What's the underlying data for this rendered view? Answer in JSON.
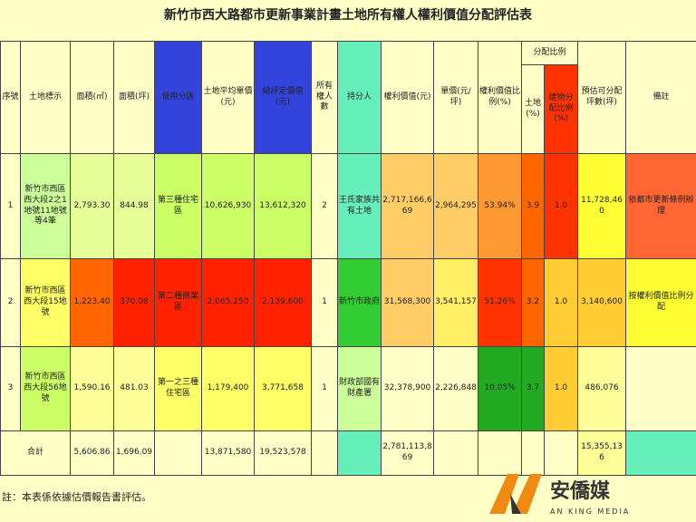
{
  "header": {
    "title": "新竹市西大路都市更新事業計畫土地所有權人權利價值分配評估表"
  },
  "table": {
    "columns": [
      "序號",
      "土地標示",
      "面積(㎡)",
      "面積(坪)",
      "使用分區",
      "土地平均單價(元)",
      "總評定價值(元)",
      "所有權人數",
      "持分人",
      "權利價值(元)",
      "單價(元/坪)",
      "權利價值比例(%)",
      "預估可分配坪數(坪)",
      "備註"
    ],
    "group": {
      "label": "分配比例",
      "sub": [
        "土地(%)",
        "建物分配比例(%)"
      ]
    },
    "rows": [
      [
        "1",
        "新竹市西區西大段2之1地號11地號等4筆",
        "2,793.30",
        "844.98",
        "第三種住宅區",
        "10,626,930",
        "13,612,320",
        "2",
        "王氏家族共有土地",
        "2,717,166,669",
        "2,964,295",
        "53.94%",
        "3.9",
        "1.0",
        "11,728,460",
        "依都市更新條例辦理"
      ],
      [
        "2",
        "新竹市西區西大段15地號",
        "1,223.40",
        "370.08",
        "第二種商業區",
        "2,065,250",
        "2,139,600",
        "1",
        "新竹市政府",
        "31,568,300",
        "3,541,157",
        "51.26%",
        "3.2",
        "1.0",
        "3,140,600",
        "按權利價值比例分配"
      ],
      [
        "3",
        "新竹市西區西大段56地號",
        "1,590.16",
        "481.03",
        "第一之三種住宅區",
        "1,179,400",
        "3,771,658",
        "1",
        "財政部國有財產署",
        "32,378,900",
        "2,226,848",
        "10.05%",
        "3.7",
        "1.0",
        "486,076",
        null
      ]
    ],
    "total": [
      "合計",
      "5,606.86",
      "1,696.09",
      null,
      "13,871,580",
      "19,523,578",
      null,
      null,
      "2,781,113,869",
      null,
      null,
      null,
      null,
      "15,355,136",
      null
    ]
  },
  "footnote": "註：本表係依據估價報告書評估。",
  "logo": {
    "name": "安僑媒",
    "sub": "AN KING MEDIA"
  }
}
